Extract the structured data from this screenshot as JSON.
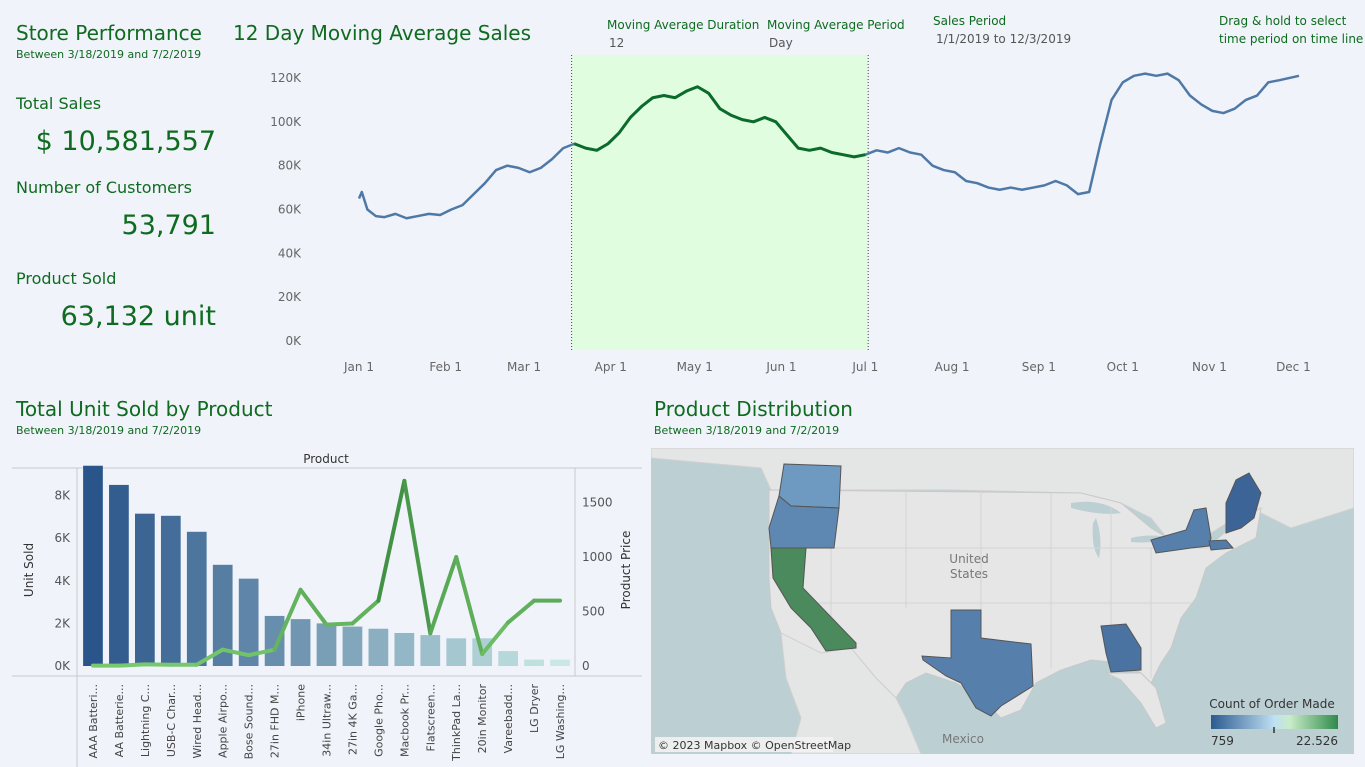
{
  "kpi": {
    "title": "Store Performance",
    "subtitle": "Between 3/18/2019 and 7/2/2019",
    "total_sales_label": "Total Sales",
    "total_sales_value": "$ 10,581,557",
    "customers_label": "Number of Customers",
    "customers_value": "53,791",
    "product_sold_label": "Product Sold",
    "product_sold_value": "63,132 unit"
  },
  "controls": {
    "ma_duration_label": "Moving Average Duration",
    "ma_duration_value": "12",
    "ma_period_label": "Moving Average Period",
    "ma_period_value": "Day",
    "sales_period_label": "Sales Period",
    "sales_period_value": "1/1/2019 to 12/3/2019",
    "hint_line1": "Drag & hold to select",
    "hint_line2": "time period on time line"
  },
  "line_section": {
    "title": "12 Day Moving Average Sales",
    "y_ticks": [
      "120K",
      "100K",
      "80K",
      "60K",
      "40K",
      "20K",
      "0K"
    ],
    "x_ticks": [
      "Jan 1",
      "Feb 1",
      "Mar 1",
      "Apr 1",
      "May 1",
      "Jun 1",
      "Jul 1",
      "Aug 1",
      "Sep 1",
      "Oct 1",
      "Nov 1",
      "Dec 1"
    ]
  },
  "bar_section": {
    "title": "Total Unit Sold by Product",
    "subtitle": "Between 3/18/2019 and 7/2/2019",
    "header": "Product",
    "y_label": "Unit Sold",
    "y2_label": "Product Price",
    "y_ticks": [
      "8K",
      "6K",
      "4K",
      "2K",
      "0K"
    ],
    "y2_ticks": [
      "1500",
      "1000",
      "500",
      "0"
    ]
  },
  "map_section": {
    "title": "Product Distribution",
    "subtitle": "Between 3/18/2019 and 7/2/2019",
    "country_label_1": "United",
    "country_label_2": "States",
    "mexico_label": "Mexico",
    "attribution": "© 2023 Mapbox © OpenStreetMap",
    "legend_title": "Count of Order Made",
    "legend_min": "759",
    "legend_max": "22.526"
  },
  "chart_data": [
    {
      "type": "line",
      "title": "12 Day Moving Average Sales",
      "x_range": [
        "2019-01-01",
        "2019-12-03"
      ],
      "ylim": [
        0,
        120000
      ],
      "selection": [
        "2019-03-18",
        "2019-07-02"
      ],
      "x": [
        "2019-01-01",
        "2019-01-02",
        "2019-01-04",
        "2019-01-07",
        "2019-01-10",
        "2019-01-14",
        "2019-01-18",
        "2019-01-22",
        "2019-01-26",
        "2019-01-30",
        "2019-02-03",
        "2019-02-07",
        "2019-02-11",
        "2019-02-15",
        "2019-02-19",
        "2019-02-23",
        "2019-02-27",
        "2019-03-03",
        "2019-03-07",
        "2019-03-11",
        "2019-03-15",
        "2019-03-19",
        "2019-03-23",
        "2019-03-27",
        "2019-03-31",
        "2019-04-04",
        "2019-04-08",
        "2019-04-12",
        "2019-04-16",
        "2019-04-20",
        "2019-04-24",
        "2019-04-28",
        "2019-05-02",
        "2019-05-06",
        "2019-05-10",
        "2019-05-14",
        "2019-05-18",
        "2019-05-22",
        "2019-05-26",
        "2019-05-30",
        "2019-06-03",
        "2019-06-07",
        "2019-06-11",
        "2019-06-15",
        "2019-06-19",
        "2019-06-23",
        "2019-06-27",
        "2019-07-01",
        "2019-07-05",
        "2019-07-09",
        "2019-07-13",
        "2019-07-17",
        "2019-07-21",
        "2019-07-25",
        "2019-07-29",
        "2019-08-02",
        "2019-08-06",
        "2019-08-10",
        "2019-08-14",
        "2019-08-18",
        "2019-08-22",
        "2019-08-26",
        "2019-08-30",
        "2019-09-03",
        "2019-09-07",
        "2019-09-11",
        "2019-09-15",
        "2019-09-19",
        "2019-09-23",
        "2019-09-27",
        "2019-10-01",
        "2019-10-05",
        "2019-10-09",
        "2019-10-13",
        "2019-10-17",
        "2019-10-21",
        "2019-10-25",
        "2019-10-29",
        "2019-11-02",
        "2019-11-06",
        "2019-11-10",
        "2019-11-14",
        "2019-11-18",
        "2019-11-22",
        "2019-11-26",
        "2019-12-03"
      ],
      "values": [
        65000,
        68000,
        60000,
        57000,
        56500,
        58000,
        56000,
        57000,
        58000,
        57500,
        60000,
        62000,
        67000,
        72000,
        78000,
        80000,
        79000,
        77000,
        79000,
        83000,
        88000,
        90000,
        88000,
        87000,
        90000,
        95000,
        102000,
        107000,
        111000,
        112000,
        111000,
        114000,
        116000,
        113000,
        106000,
        103000,
        101000,
        100000,
        102000,
        100000,
        94000,
        88000,
        87000,
        88000,
        86000,
        85000,
        84000,
        85000,
        87000,
        86000,
        88000,
        86000,
        85000,
        80000,
        78000,
        77000,
        73000,
        72000,
        70000,
        69000,
        70000,
        69000,
        70000,
        71000,
        73000,
        71000,
        67000,
        68000,
        90000,
        110000,
        118000,
        121000,
        122000,
        121000,
        122000,
        119000,
        112000,
        108000,
        105000,
        104000,
        106000,
        110000,
        112000,
        118000,
        119000,
        121000
      ],
      "series": [
        {
          "name": "Moving Average Sales"
        }
      ]
    },
    {
      "type": "bar",
      "title": "Total Unit Sold by Product",
      "xlabel": "Product",
      "ylabel": "Unit Sold",
      "y2label": "Product Price",
      "ylim": [
        0,
        9200
      ],
      "y2lim": [
        0,
        1800
      ],
      "categories": [
        "AAA Batteri...",
        "AA Batterie...",
        "Lightning C...",
        "USB-C Char...",
        "Wired Head...",
        "Apple Airpo...",
        "Bose Sound...",
        "27in FHD M...",
        "iPhone",
        "34in Ultraw...",
        "27in 4K Ga...",
        "Google Pho...",
        "Macbook Pr...",
        "Flatscreen...",
        "ThinkPad La...",
        "20in Monitor",
        "Vareebadd...",
        "LG Dryer",
        "LG Washing..."
      ],
      "series": [
        {
          "name": "Unit Sold",
          "values": [
            9400,
            8500,
            7150,
            7050,
            6300,
            4750,
            4100,
            2350,
            2200,
            2000,
            1850,
            1750,
            1550,
            1450,
            1300,
            1300,
            700,
            300,
            300
          ]
        },
        {
          "name": "Product Price",
          "values": [
            3.84,
            2.99,
            14.95,
            11.95,
            11.99,
            150,
            99.99,
            149.99,
            700,
            379.99,
            389.99,
            600,
            1700,
            300,
            999.99,
            109.99,
            400,
            600,
            600
          ]
        }
      ]
    },
    {
      "type": "map",
      "title": "Product Distribution",
      "legend": "Count of Order Made",
      "range": [
        759,
        22526
      ],
      "regions": [
        {
          "name": "Washington",
          "value": 7000
        },
        {
          "name": "Oregon",
          "value": 5000
        },
        {
          "name": "California",
          "value": 22526
        },
        {
          "name": "Texas",
          "value": 4000
        },
        {
          "name": "Georgia",
          "value": 2500
        },
        {
          "name": "Maine",
          "value": 759
        },
        {
          "name": "New York",
          "value": 4000
        },
        {
          "name": "Massachusetts",
          "value": 3500
        }
      ]
    }
  ]
}
